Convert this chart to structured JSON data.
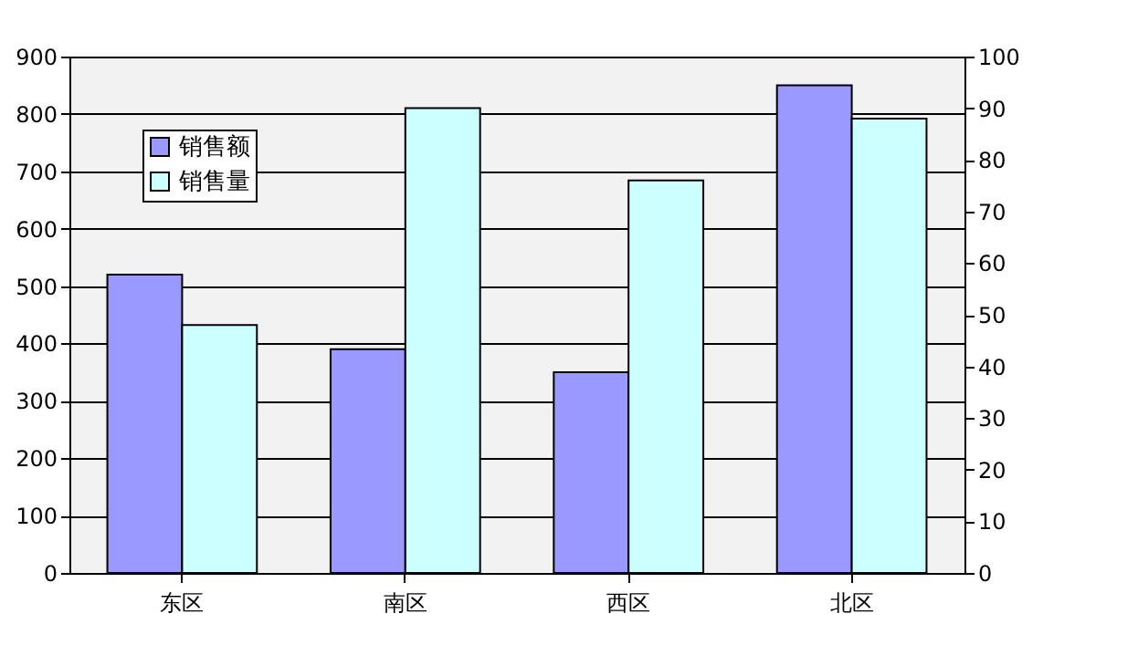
{
  "chart_data": {
    "type": "bar",
    "categories": [
      "东区",
      "南区",
      "西区",
      "北区"
    ],
    "series": [
      {
        "name": "销售额",
        "color": "#9999ff",
        "values": [
          520,
          390,
          350,
          850
        ]
      },
      {
        "name": "销售量",
        "color": "#ccffff",
        "values": [
          48,
          90,
          76,
          88
        ],
        "axis": "y2"
      }
    ],
    "ylim": [
      0,
      900
    ],
    "yticks": [
      0,
      100,
      200,
      300,
      400,
      500,
      600,
      700,
      800,
      900
    ],
    "y2lim": [
      0,
      100
    ],
    "y2ticks": [
      0,
      10,
      20,
      30,
      40,
      50,
      60,
      70,
      80,
      90,
      100
    ],
    "grid": "y",
    "legend": "top left"
  }
}
